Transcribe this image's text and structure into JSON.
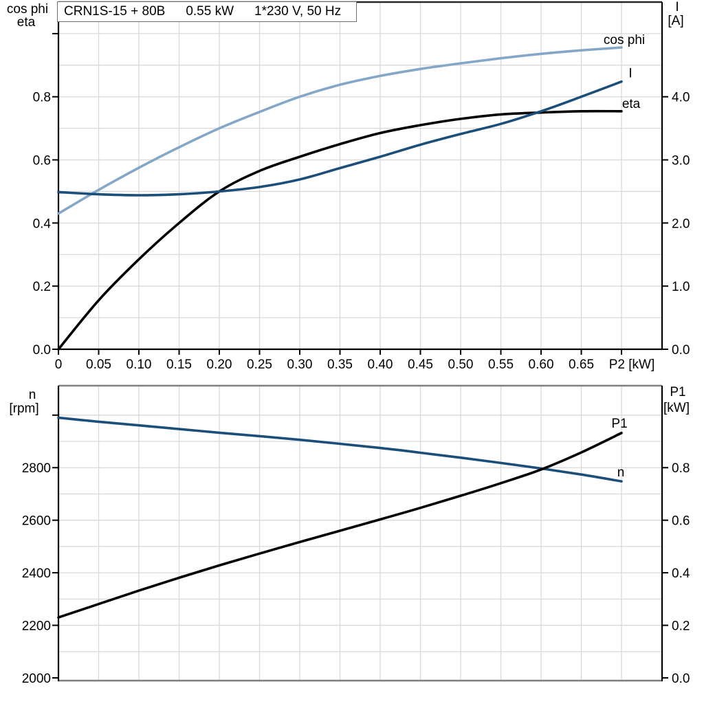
{
  "info_box": {
    "model": "CRN1S-15 + 80B",
    "power": "0.55 kW",
    "supply": "1*230 V, 50 Hz"
  },
  "chart_data": [
    {
      "id": "top",
      "type": "line",
      "title": "CRN1S-15 + 80B 0.55 kW 1*230 V, 50 Hz",
      "x": [
        0,
        0.05,
        0.1,
        0.15,
        0.2,
        0.25,
        0.3,
        0.35,
        0.4,
        0.45,
        0.5,
        0.55,
        0.6,
        0.65,
        0.7
      ],
      "xlabel": "P2 [kW]",
      "xlim": [
        0,
        0.7504
      ],
      "x_tick_values": [
        0,
        0.05,
        0.1,
        0.15,
        0.2,
        0.25,
        0.3,
        0.35,
        0.4,
        0.45,
        0.5,
        0.55,
        0.6,
        0.65,
        0.7
      ],
      "x_tick_labels": [
        "0",
        "0.05",
        "0.10",
        "0.15",
        "0.20",
        "0.25",
        "0.30",
        "0.35",
        "0.40",
        "0.45",
        "0.50",
        "0.55",
        "0.60",
        "0.65",
        ""
      ],
      "grid": "minor horizontal + vertical, light gray",
      "left_axis": {
        "title_lines": [
          "cos phi",
          "eta"
        ],
        "lim": [
          0,
          1.1
        ],
        "tick_values": [
          0.0,
          0.2,
          0.4,
          0.6,
          0.8
        ],
        "tick_labels": [
          "0.0",
          "0.2",
          "0.4",
          "0.6",
          "0.8"
        ],
        "extra_tick_values": [
          1.0
        ],
        "minor_grid_step": 0.1
      },
      "right_axis": {
        "title_lines": [
          "I",
          "[A]"
        ],
        "lim": [
          0,
          5.5
        ],
        "tick_values": [
          0.0,
          1.0,
          2.0,
          3.0,
          4.0
        ],
        "tick_labels": [
          "0.0",
          "1.0",
          "2.0",
          "3.0",
          "4.0"
        ]
      },
      "series": [
        {
          "name": "cos phi",
          "axis": "left",
          "color": "#84a7c7",
          "values": [
            0.43,
            0.505,
            0.575,
            0.64,
            0.7,
            0.752,
            0.8,
            0.838,
            0.866,
            0.888,
            0.906,
            0.922,
            0.936,
            0.947,
            0.956
          ],
          "label_offset": [
            4,
            -12
          ]
        },
        {
          "name": "eta",
          "axis": "left",
          "color": "#000000",
          "values": [
            0.0,
            0.155,
            0.285,
            0.4,
            0.5,
            0.565,
            0.61,
            0.65,
            0.685,
            0.71,
            0.73,
            0.744,
            0.75,
            0.754,
            0.754
          ],
          "label_offset": [
            14,
            -12
          ]
        },
        {
          "name": "I",
          "axis": "right",
          "color": "#1b4e79",
          "values": [
            2.49,
            2.455,
            2.44,
            2.455,
            2.5,
            2.57,
            2.69,
            2.87,
            3.05,
            3.24,
            3.41,
            3.57,
            3.77,
            4.0,
            4.24
          ],
          "label_offset": [
            13,
            -13
          ]
        }
      ]
    },
    {
      "id": "bottom",
      "type": "line",
      "x": [
        0,
        0.05,
        0.1,
        0.15,
        0.2,
        0.25,
        0.3,
        0.35,
        0.4,
        0.45,
        0.5,
        0.55,
        0.6,
        0.65,
        0.7
      ],
      "xlabel": "",
      "xlim": [
        0,
        0.7504
      ],
      "x_tick_values": [],
      "x_tick_labels": [],
      "grid": "minor horizontal + vertical, light gray",
      "left_axis": {
        "title_lines": [
          "n",
          "[rpm]"
        ],
        "lim": [
          2000,
          3112
        ],
        "tick_values": [
          2000,
          2200,
          2400,
          2600,
          2800
        ],
        "tick_labels": [
          "2000",
          "2200",
          "2400",
          "2600",
          "2800"
        ],
        "extra_tick_values": [
          3000
        ],
        "minor_grid_step": 100
      },
      "right_axis": {
        "title_lines": [
          "P1",
          "[kW]"
        ],
        "lim": [
          0,
          1.112
        ],
        "tick_values": [
          0.0,
          0.2,
          0.4,
          0.6,
          0.8
        ],
        "tick_labels": [
          "0.0",
          "0.2",
          "0.4",
          "0.6",
          "0.8"
        ]
      },
      "series": [
        {
          "name": "n",
          "axis": "left",
          "color": "#1b4e79",
          "values": [
            2990,
            2975,
            2961,
            2947,
            2933,
            2920,
            2906,
            2891,
            2875,
            2857,
            2838,
            2818,
            2797,
            2774,
            2748
          ],
          "label_offset": [
            -1,
            -14
          ]
        },
        {
          "name": "P1",
          "axis": "right",
          "color": "#000000",
          "values": [
            0.23,
            0.281,
            0.332,
            0.381,
            0.428,
            0.473,
            0.517,
            0.56,
            0.603,
            0.647,
            0.693,
            0.741,
            0.793,
            0.858,
            0.932
          ],
          "label_offset": [
            -3,
            -15
          ]
        }
      ]
    }
  ]
}
